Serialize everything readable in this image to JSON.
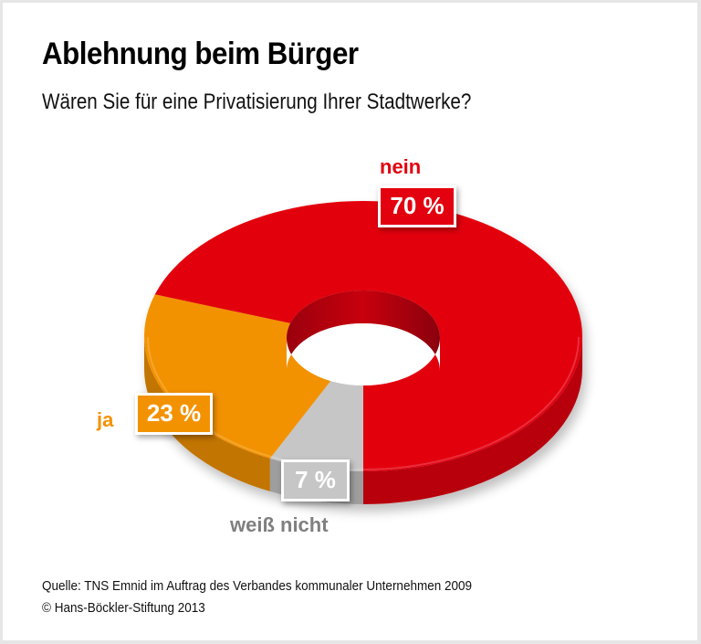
{
  "header": {
    "title": "Ablehnung beim Bürger",
    "subtitle": "Wären Sie für eine Privatisierung Ihrer Stadtwerke?"
  },
  "chart_data": {
    "type": "pie",
    "variant": "3d-donut",
    "title": "Ablehnung beim Bürger",
    "subtitle": "Wären Sie für eine Privatisierung Ihrer Stadtwerke?",
    "categories": [
      "nein",
      "ja",
      "weiß nicht"
    ],
    "values": [
      70,
      23,
      7
    ],
    "value_labels": [
      "70 %",
      "23 %",
      "7 %"
    ],
    "unit": "%",
    "colors": [
      "#e3000f",
      "#f39200",
      "#c6c6c6"
    ],
    "side_colors": [
      "#b8000c",
      "#c27500",
      "#9e9e9e"
    ],
    "label_colors": [
      "#e3000f",
      "#f39200",
      "#7f7f7f"
    ]
  },
  "footer": {
    "source": "Quelle: TNS Emnid im Auftrag des Verbandes kommunaler Unternehmen 2009",
    "copyright": "© Hans-Böckler-Stiftung 2013"
  }
}
